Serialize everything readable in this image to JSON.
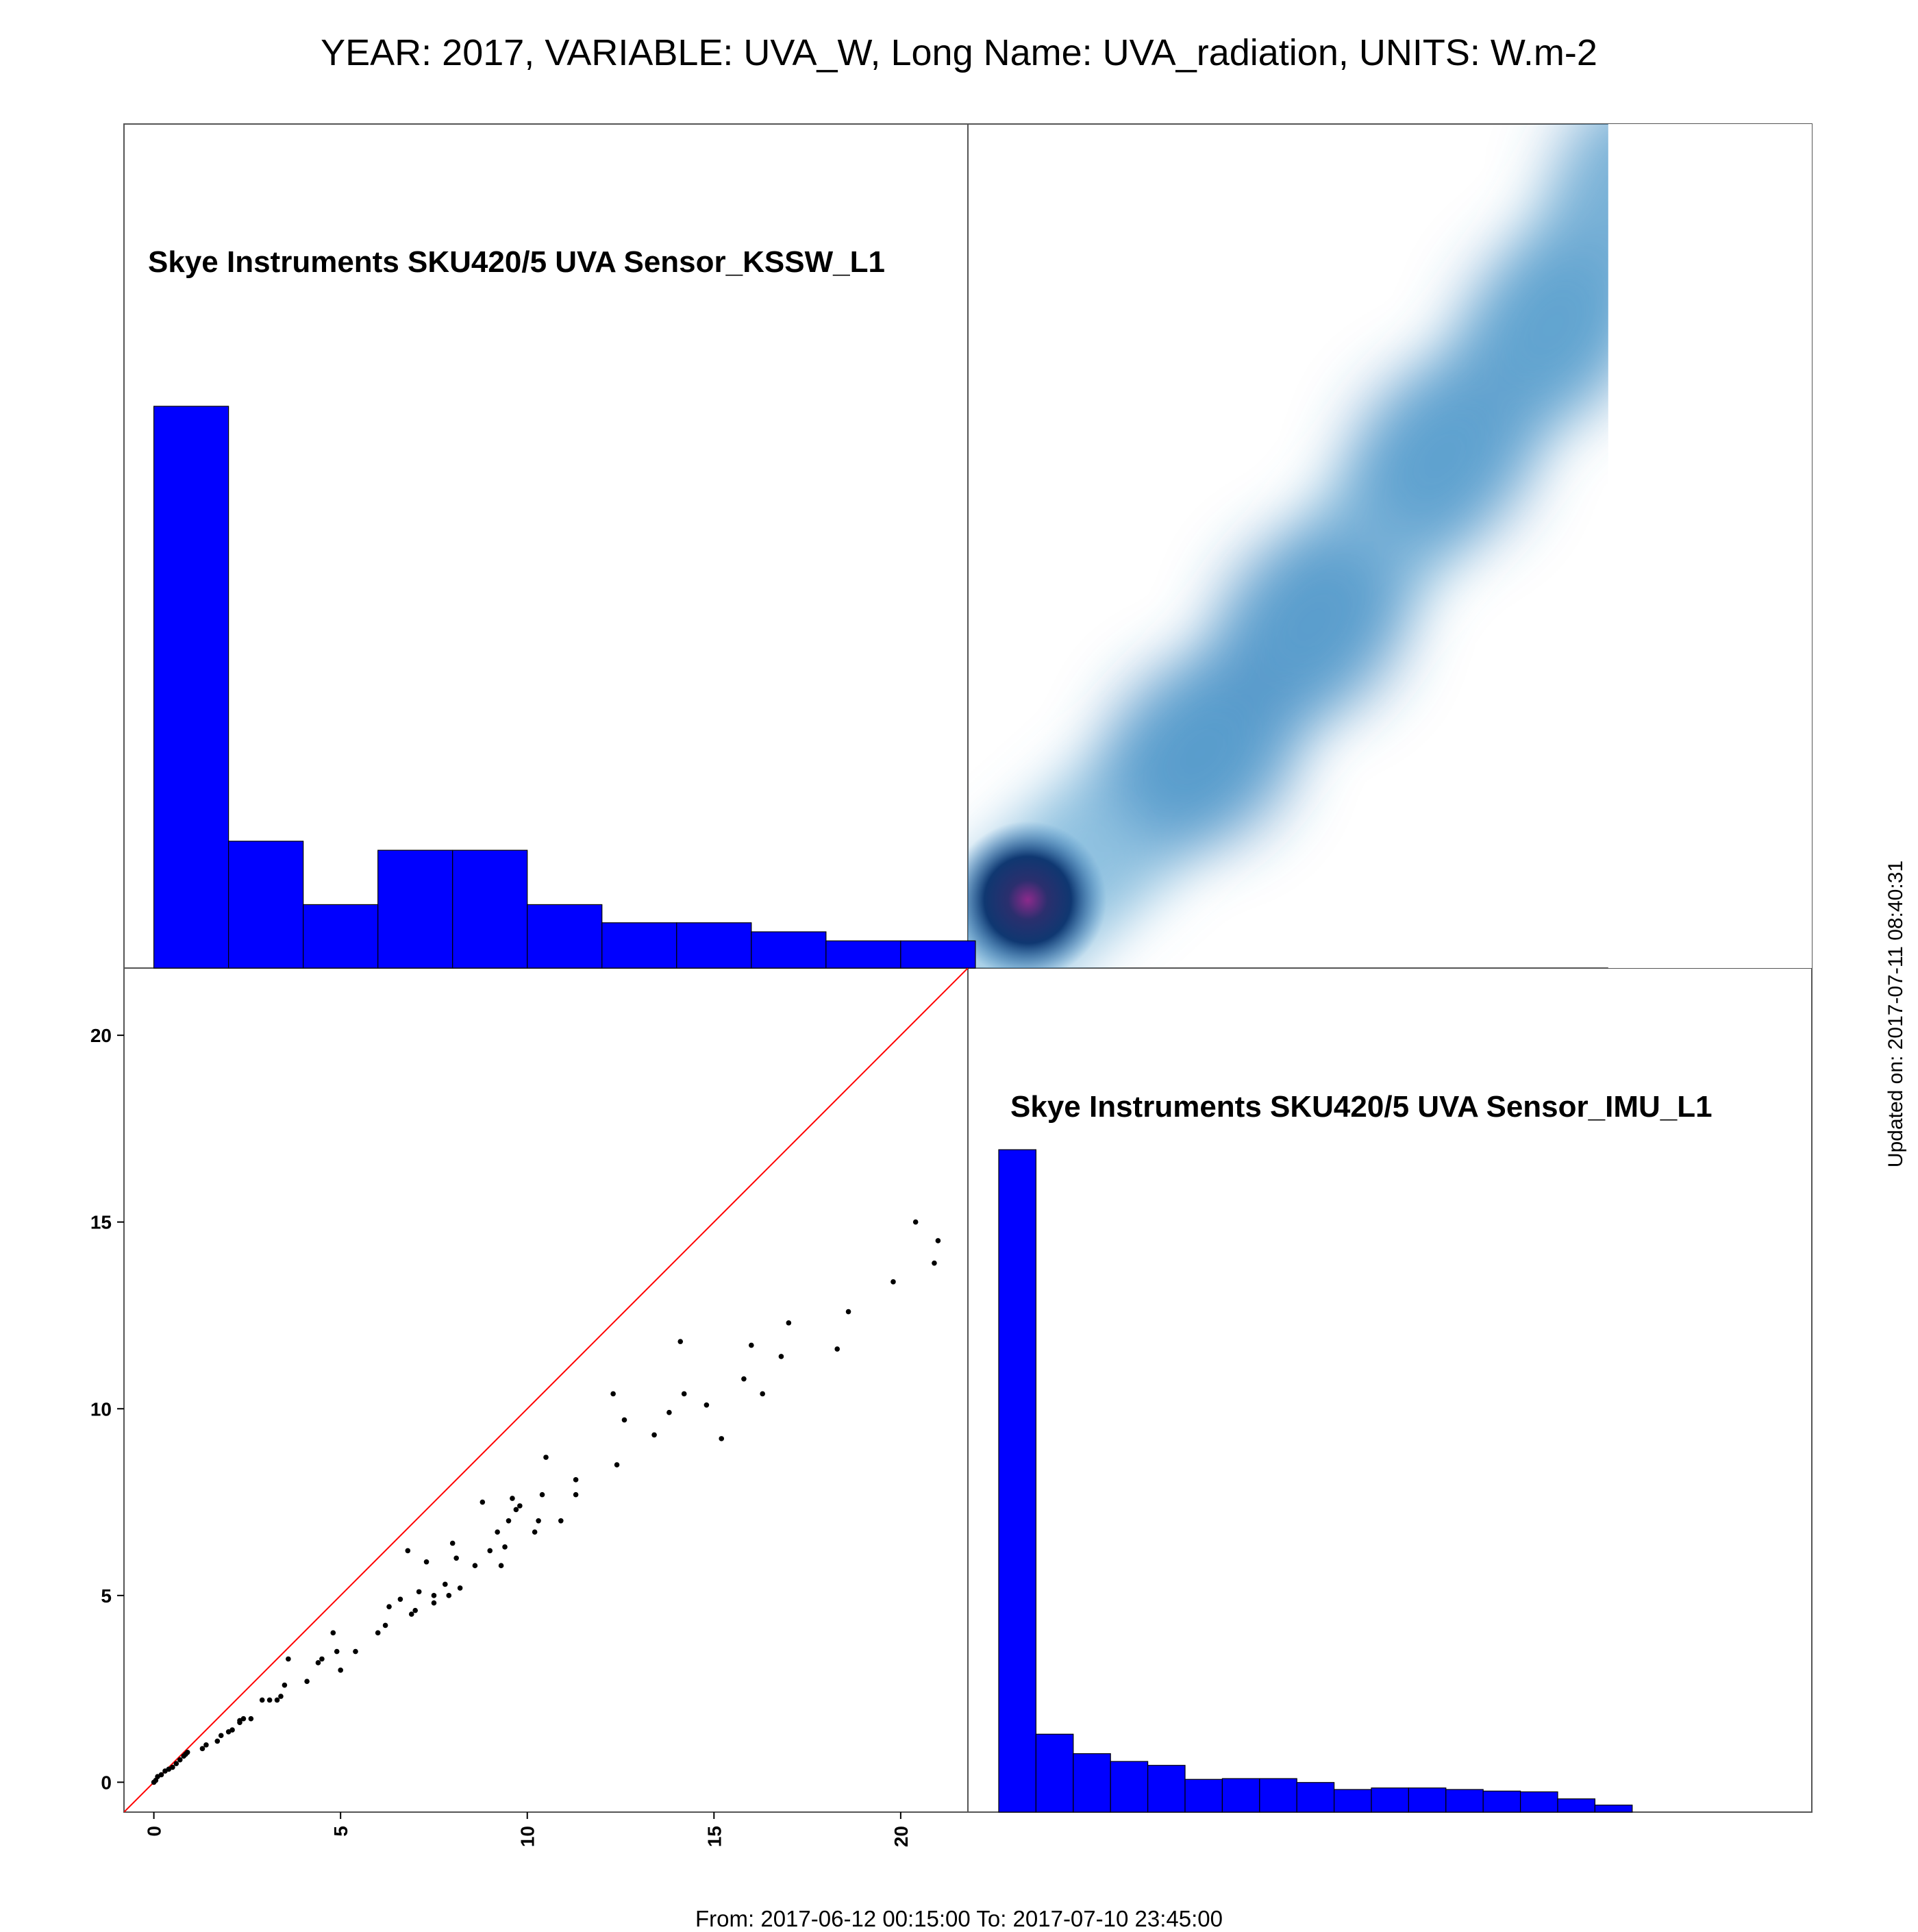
{
  "title": "YEAR: 2017, VARIABLE: UVA_W, Long Name: UVA_radiation, UNITS: W.m-2",
  "footer": "From: 2017-06-12 00:15:00 To: 2017-07-10 23:45:00",
  "updated": "Updated on: 2017-07-11 08:40:31",
  "colors": {
    "hist": "#0000ff",
    "identity_line": "#ff0000",
    "points": "#000000",
    "density_low": "#ffffff",
    "density_mid": "#6baed6",
    "density_high": "#08306b",
    "density_peak": "#8b2a8b"
  },
  "chart_data": [
    {
      "type": "bar",
      "panel": "top-left",
      "label": "Skye Instruments SKU420/5 UVA Sensor_KSSW_L1",
      "bin_edges": [
        0,
        2,
        4,
        6,
        8,
        10,
        12,
        14,
        16,
        18,
        20,
        22
      ],
      "values": [
        62,
        14,
        7,
        13,
        13,
        7,
        5,
        5,
        4,
        3,
        3
      ],
      "ylim": [
        0,
        62
      ]
    },
    {
      "type": "heatmap",
      "panel": "top-right",
      "description_axes": "x: Sensor_KSSW_L1, y: Sensor_IMU_L1 (density)",
      "xlim": [
        -0.8,
        22
      ],
      "ylim": [
        -0.8,
        22
      ],
      "x_extent": [
        -0.8,
        16.5
      ],
      "blobs": [
        {
          "x": 0.3,
          "y": 0.3,
          "weight": 1.0
        },
        {
          "x": 5.5,
          "y": 5.0,
          "weight": 0.6
        },
        {
          "x": 8.5,
          "y": 8.5,
          "weight": 0.55
        },
        {
          "x": 12.0,
          "y": 13.0,
          "weight": 0.45
        },
        {
          "x": 15.0,
          "y": 16.5,
          "weight": 0.4
        },
        {
          "x": 17.5,
          "y": 20.8,
          "weight": 0.35
        }
      ]
    },
    {
      "type": "scatter",
      "panel": "bottom-left",
      "xlabel": "Skye Instruments SKU420/5 UVA Sensor_KSSW_L1",
      "ylabel": "Skye Instruments SKU420/5 UVA Sensor_IMU_L1",
      "xlim": [
        -0.8,
        21.8
      ],
      "ylim": [
        -0.8,
        21.8
      ],
      "x_ticks": [
        0,
        5,
        10,
        15,
        20
      ],
      "y_ticks": [
        0,
        5,
        10,
        15,
        20
      ],
      "identity_line": true,
      "x": [
        0.0,
        0.05,
        0.1,
        0.2,
        0.3,
        0.4,
        0.5,
        0.6,
        0.7,
        0.8,
        0.85,
        0.9,
        1.3,
        1.4,
        1.7,
        1.8,
        2.0,
        2.1,
        2.3,
        2.3,
        2.4,
        2.6,
        2.9,
        3.1,
        3.3,
        3.4,
        3.5,
        3.6,
        4.1,
        4.4,
        4.5,
        4.8,
        4.9,
        5.0,
        5.4,
        6.0,
        6.2,
        6.3,
        6.6,
        6.8,
        6.9,
        7.0,
        7.1,
        7.3,
        7.5,
        7.5,
        7.8,
        7.9,
        8.0,
        8.1,
        8.2,
        8.6,
        8.8,
        9.0,
        9.2,
        9.3,
        9.4,
        9.5,
        9.6,
        9.7,
        9.8,
        10.2,
        10.3,
        10.4,
        10.5,
        10.9,
        11.3,
        11.3,
        12.3,
        12.4,
        12.6,
        13.4,
        13.8,
        14.1,
        14.2,
        14.8,
        15.2,
        15.8,
        16.0,
        16.3,
        16.8,
        17.0,
        18.3,
        18.6,
        19.8,
        20.4,
        20.9,
        21.0
      ],
      "y": [
        0.0,
        0.05,
        0.15,
        0.2,
        0.3,
        0.35,
        0.4,
        0.5,
        0.6,
        0.7,
        0.75,
        0.8,
        0.9,
        1.0,
        1.1,
        1.25,
        1.35,
        1.4,
        1.6,
        1.65,
        1.7,
        1.7,
        2.2,
        2.2,
        2.2,
        2.3,
        2.6,
        3.3,
        2.7,
        3.2,
        3.3,
        4.0,
        3.5,
        3.0,
        3.5,
        4.0,
        4.2,
        4.7,
        4.9,
        6.2,
        4.5,
        4.6,
        5.1,
        5.9,
        4.8,
        5.0,
        5.3,
        5.0,
        6.4,
        6.0,
        5.2,
        5.8,
        7.5,
        6.2,
        6.7,
        5.8,
        6.3,
        7.0,
        7.6,
        7.3,
        7.4,
        6.7,
        7.0,
        7.7,
        8.7,
        7.0,
        7.7,
        8.1,
        10.4,
        8.5,
        9.7,
        9.3,
        9.9,
        11.8,
        10.4,
        10.1,
        9.2,
        10.8,
        11.7,
        10.4,
        11.4,
        12.3,
        11.6,
        12.6,
        13.4,
        15.0,
        13.9,
        14.5
      ]
    },
    {
      "type": "bar",
      "panel": "bottom-right",
      "label": "Skye Instruments SKU420/5 UVA Sensor_IMU_L1",
      "bin_edges": [
        0,
        1,
        2,
        3,
        4,
        5,
        6,
        7,
        8,
        9,
        10,
        11,
        12,
        13,
        14,
        15,
        16,
        17
      ],
      "values": [
        85,
        10,
        7.5,
        6.5,
        6,
        4.2,
        4.3,
        4.3,
        3.8,
        2.9,
        3.1,
        3.1,
        2.9,
        2.7,
        2.6,
        1.7,
        0.9
      ],
      "ylim": [
        0,
        104
      ]
    }
  ]
}
